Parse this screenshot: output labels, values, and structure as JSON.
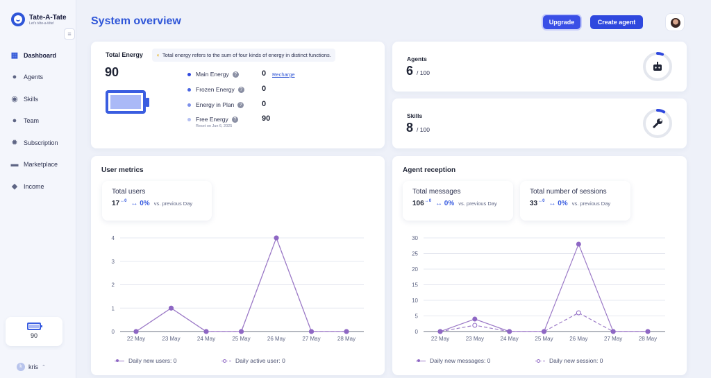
{
  "brand": {
    "name": "Tate-A-Tate",
    "tagline": "Let's tête-a-tête!"
  },
  "sidebar": {
    "items": [
      {
        "label": "Dashboard",
        "icon": "chart-icon",
        "active": true
      },
      {
        "label": "Agents",
        "icon": "user-icon"
      },
      {
        "label": "Skills",
        "icon": "skill-icon"
      },
      {
        "label": "Team",
        "icon": "team-icon"
      },
      {
        "label": "Subscription",
        "icon": "gear-icon"
      },
      {
        "label": "Marketplace",
        "icon": "store-icon"
      },
      {
        "label": "Income",
        "icon": "piggybank-icon"
      }
    ],
    "energy_value": "90",
    "user_name": "kris",
    "user_initial": "k"
  },
  "header": {
    "title": "System overview",
    "upgrade_label": "Upgrade",
    "create_label": "Create agent"
  },
  "energy": {
    "title": "Total Energy",
    "total": "90",
    "tip": "Total energy refers to the sum of four kinds of energy in distinct functions.",
    "rows": [
      {
        "label": "Main Energy",
        "value": "0",
        "color": "#2f48de"
      },
      {
        "label": "Frozen Energy",
        "value": "0",
        "color": "#4a66e2"
      },
      {
        "label": "Energy in Plan",
        "value": "0",
        "color": "#7d90ea"
      },
      {
        "label": "Free Energy",
        "value": "90",
        "color": "#b4c0f2"
      }
    ],
    "recharge": "Recharge",
    "reset_note": "Reset on Jun 6, 2025"
  },
  "agents": {
    "label": "Agents",
    "value": "6",
    "max": "/ 100",
    "fraction": 0.06
  },
  "skills": {
    "label": "Skills",
    "value": "8",
    "max": "/ 100",
    "fraction": 0.08
  },
  "user_metrics": {
    "title": "User metrics",
    "stat": {
      "label": "Total users",
      "value": "17",
      "delta": "↔0",
      "pct": "↔ 0%",
      "vs": "vs. previous Day"
    },
    "legend": [
      "Daily new users: 0",
      "Daily active user: 0"
    ]
  },
  "agent_reception": {
    "title": "Agent reception",
    "stats": [
      {
        "label": "Total messages",
        "value": "106",
        "delta": "↔0",
        "pct": "↔ 0%",
        "vs": "vs. previous Day"
      },
      {
        "label": "Total number of sessions",
        "value": "33",
        "delta": "↔0",
        "pct": "↔ 0%",
        "vs": "vs. previous Day"
      }
    ],
    "legend": [
      "Daily new messages: 0",
      "Daily new session: 0"
    ]
  },
  "chart_data": [
    {
      "type": "line",
      "title": "",
      "categories": [
        "22 May",
        "23 May",
        "24 May",
        "25 May",
        "26 May",
        "27 May",
        "28 May"
      ],
      "yticks": [
        "0",
        "1",
        "2",
        "3",
        "4"
      ],
      "ylim": [
        0,
        4
      ],
      "series": [
        {
          "name": "Daily new users",
          "values": [
            0,
            1,
            0,
            0,
            4,
            0,
            0
          ],
          "color": "#9c7ac7",
          "style": "solid"
        },
        {
          "name": "Daily active user",
          "values": [
            0,
            1,
            0,
            0,
            4,
            0,
            0
          ],
          "color": "#9c7ac7",
          "style": "dashed"
        }
      ],
      "grid": true
    },
    {
      "type": "line",
      "title": "",
      "categories": [
        "22 May",
        "23 May",
        "24 May",
        "25 May",
        "26 May",
        "27 May",
        "28 May"
      ],
      "yticks": [
        "0",
        "5",
        "10",
        "15",
        "20",
        "25",
        "30"
      ],
      "ylim": [
        0,
        30
      ],
      "series": [
        {
          "name": "Daily new messages",
          "values": [
            0,
            4,
            0,
            0,
            28,
            0,
            0
          ],
          "color": "#9c7ac7",
          "style": "solid"
        },
        {
          "name": "Daily new session",
          "values": [
            0,
            2,
            0,
            0,
            6,
            0,
            0
          ],
          "color": "#9c7ac7",
          "style": "dashed"
        }
      ],
      "grid": true
    }
  ]
}
